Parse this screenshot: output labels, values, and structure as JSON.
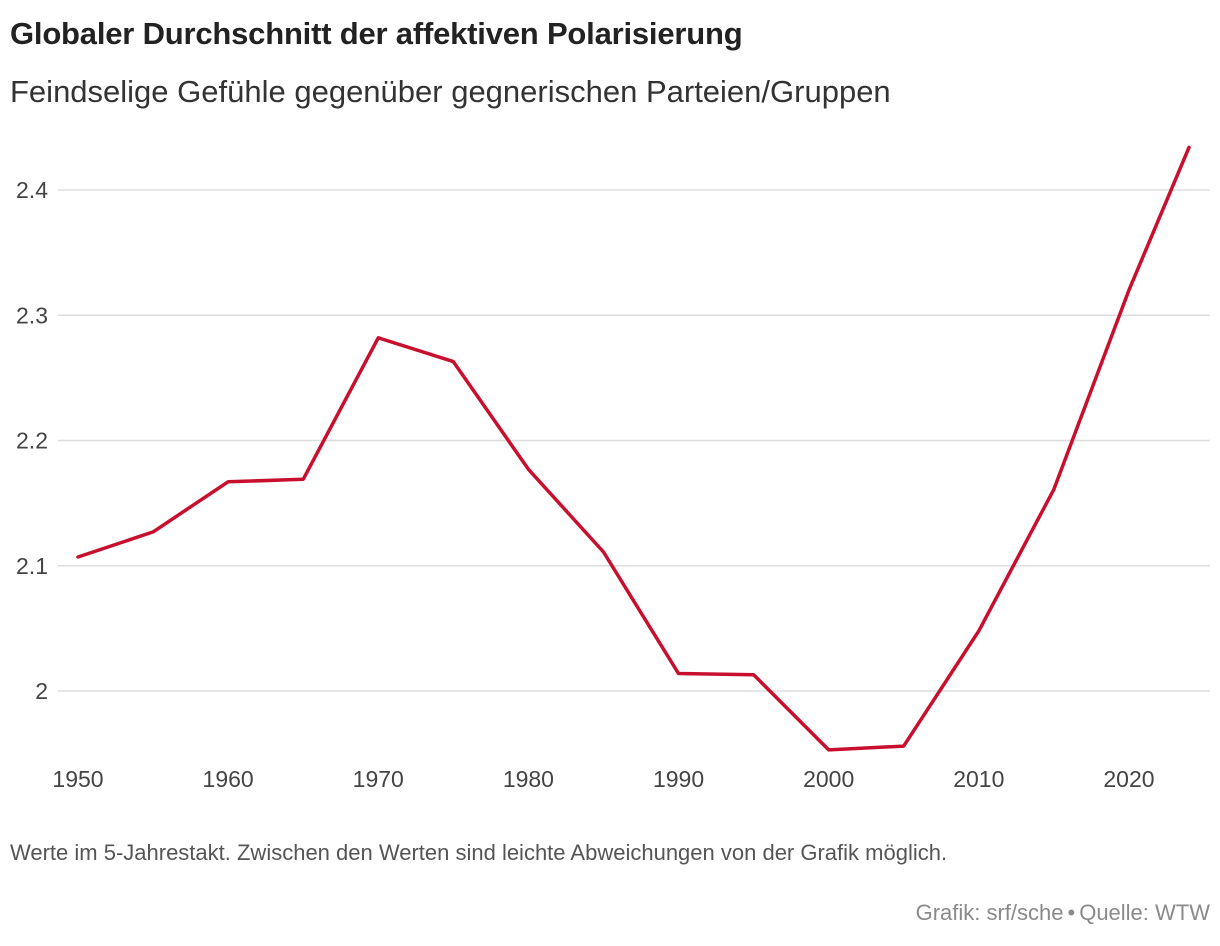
{
  "header": {
    "title": "Globaler Durchschnitt der affektiven Polarisierung",
    "subtitle": "Feindselige Gefühle gegenüber gegnerischen Parteien/Gruppen"
  },
  "footer": {
    "note": "Werte im 5-Jahrestakt. Zwischen den Werten sind leichte Abweichungen von der Grafik möglich.",
    "credit_grafik": "Grafik: srf/sche",
    "credit_separator": "•",
    "credit_source": "Quelle: WTW"
  },
  "colors": {
    "line": "#c8102e",
    "grid": "#dddddd",
    "tick_text": "#444444"
  },
  "chart_data": {
    "type": "line",
    "title": "Globaler Durchschnitt der affektiven Polarisierung",
    "subtitle": "Feindselige Gefühle gegenüber gegnerischen Parteien/Gruppen",
    "xlabel": "",
    "ylabel": "",
    "x": [
      1950,
      1955,
      1960,
      1965,
      1970,
      1975,
      1980,
      1985,
      1990,
      1995,
      2000,
      2005,
      2010,
      2015,
      2020,
      2024
    ],
    "series": [
      {
        "values": [
          2.107,
          2.127,
          2.167,
          2.169,
          2.282,
          2.263,
          2.177,
          2.111,
          2.014,
          2.013,
          1.953,
          1.956,
          2.048,
          2.161,
          2.32,
          2.434
        ]
      }
    ],
    "xlim": [
      1950,
      2024
    ],
    "ylim": [
      1.95,
      2.44
    ],
    "xticks": [
      1950,
      1960,
      1970,
      1980,
      1990,
      2000,
      2010,
      2020
    ],
    "xtick_labels": [
      "1950",
      "1960",
      "1970",
      "1980",
      "1990",
      "2000",
      "2010",
      "2020"
    ],
    "yticks": [
      2.0,
      2.1,
      2.2,
      2.3,
      2.4
    ],
    "ytick_labels": [
      "2",
      "2.1",
      "2.2",
      "2.3",
      "2.4"
    ],
    "grid": "horizontal",
    "legend": "none"
  }
}
